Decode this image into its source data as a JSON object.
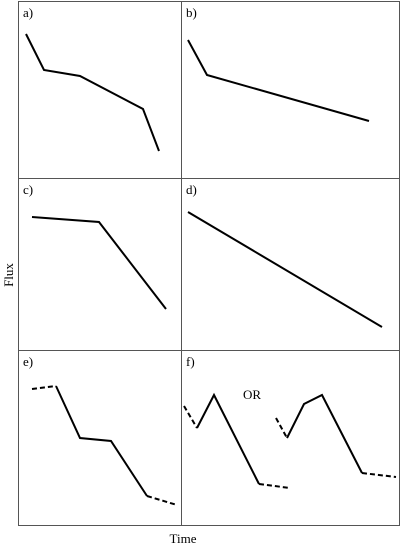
{
  "axes": {
    "y_label": "Flux",
    "x_label": "Time"
  },
  "panels": [
    {
      "label": "a)"
    },
    {
      "label": "b)"
    },
    {
      "label": "c)"
    },
    {
      "label": "d)"
    },
    {
      "label": "e)"
    },
    {
      "label": "f)",
      "note": "OR"
    }
  ]
}
